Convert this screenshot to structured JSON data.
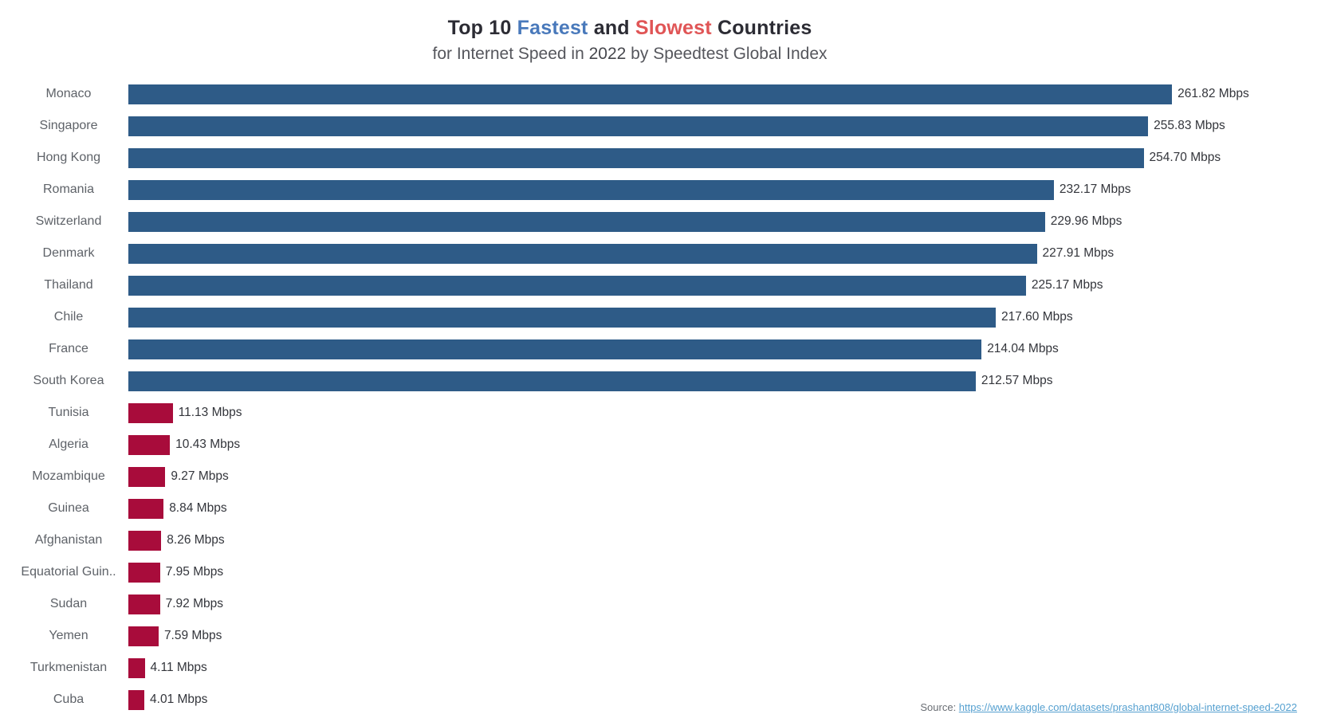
{
  "title": {
    "part1": "Top 10 ",
    "fastest": "Fastest",
    "part2": " and ",
    "slowest": "Slowest",
    "part3": " Countries"
  },
  "subtitle": {
    "part1": "for Internet Speed in ",
    "year": "2022",
    "part2": " by Speedtest Global Index"
  },
  "source": {
    "label": "Source: ",
    "link_text": "https://www.kaggle.com/datasets/prashant808/global-internet-speed-2022"
  },
  "colors": {
    "fastest_bar": "#2e5b87",
    "slowest_bar": "#a80c3b",
    "title_fastest": "#4979bb",
    "title_slowest": "#e05556",
    "link": "#55a0d0"
  },
  "chart_data": {
    "type": "bar",
    "orientation": "horizontal",
    "title": "Top 10 Fastest and Slowest Countries for Internet Speed in 2022 by Speedtest Global Index",
    "unit": "Mbps",
    "xlim": [
      0,
      262
    ],
    "grid": false,
    "legend": false,
    "bars": [
      {
        "country": "Monaco",
        "value": 261.82,
        "display": "261.82 Mbps",
        "group": "fastest"
      },
      {
        "country": "Singapore",
        "value": 255.83,
        "display": "255.83 Mbps",
        "group": "fastest"
      },
      {
        "country": "Hong Kong",
        "value": 254.7,
        "display": "254.70 Mbps",
        "group": "fastest"
      },
      {
        "country": "Romania",
        "value": 232.17,
        "display": "232.17 Mbps",
        "group": "fastest"
      },
      {
        "country": "Switzerland",
        "value": 229.96,
        "display": "229.96 Mbps",
        "group": "fastest"
      },
      {
        "country": "Denmark",
        "value": 227.91,
        "display": "227.91 Mbps",
        "group": "fastest"
      },
      {
        "country": "Thailand",
        "value": 225.17,
        "display": "225.17 Mbps",
        "group": "fastest"
      },
      {
        "country": "Chile",
        "value": 217.6,
        "display": "217.60 Mbps",
        "group": "fastest"
      },
      {
        "country": "France",
        "value": 214.04,
        "display": "214.04 Mbps",
        "group": "fastest"
      },
      {
        "country": "South Korea",
        "value": 212.57,
        "display": "212.57 Mbps",
        "group": "fastest"
      },
      {
        "country": "Tunisia",
        "value": 11.13,
        "display": "11.13 Mbps",
        "group": "slowest"
      },
      {
        "country": "Algeria",
        "value": 10.43,
        "display": "10.43 Mbps",
        "group": "slowest"
      },
      {
        "country": "Mozambique",
        "value": 9.27,
        "display": "9.27 Mbps",
        "group": "slowest"
      },
      {
        "country": "Guinea",
        "value": 8.84,
        "display": "8.84 Mbps",
        "group": "slowest"
      },
      {
        "country": "Afghanistan",
        "value": 8.26,
        "display": "8.26 Mbps",
        "group": "slowest"
      },
      {
        "country": "Equatorial Guin..",
        "value": 7.95,
        "display": "7.95 Mbps",
        "group": "slowest"
      },
      {
        "country": "Sudan",
        "value": 7.92,
        "display": "7.92 Mbps",
        "group": "slowest"
      },
      {
        "country": "Yemen",
        "value": 7.59,
        "display": "7.59 Mbps",
        "group": "slowest"
      },
      {
        "country": "Turkmenistan",
        "value": 4.11,
        "display": "4.11 Mbps",
        "group": "slowest"
      },
      {
        "country": "Cuba",
        "value": 4.01,
        "display": "4.01 Mbps",
        "group": "slowest"
      }
    ]
  }
}
